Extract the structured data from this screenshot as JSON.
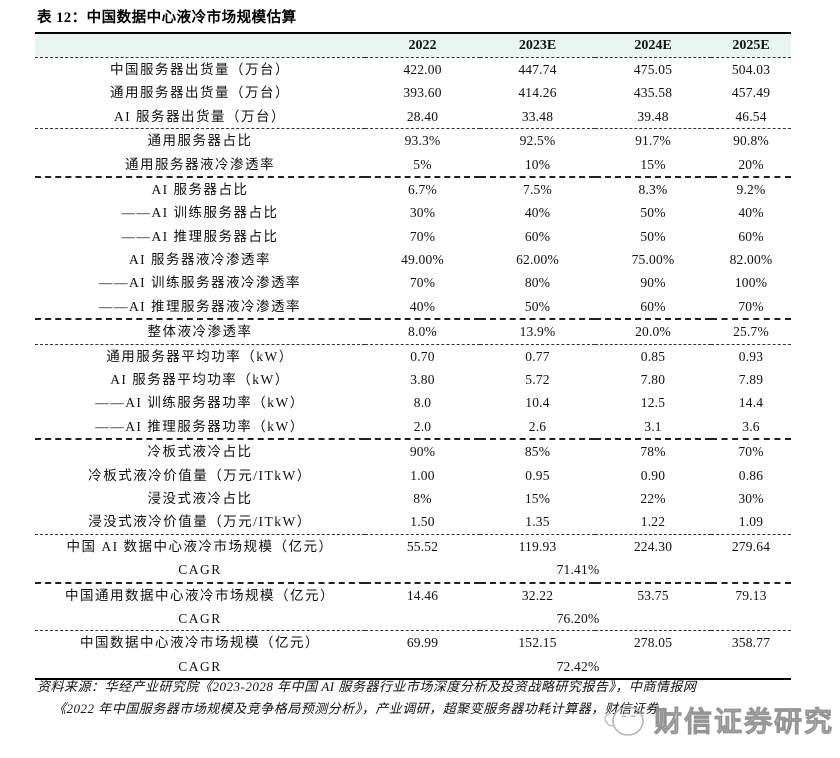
{
  "title": "表 12：中国数据中心液冷市场规模估算",
  "table": {
    "columns": [
      "2022",
      "2023E",
      "2024E",
      "2025E"
    ],
    "sections": [
      {
        "separator": "dashed",
        "rows": [
          {
            "label": "中国服务器出货量（万台）",
            "values": [
              "422.00",
              "447.74",
              "475.05",
              "504.03"
            ]
          },
          {
            "label": "通用服务器出货量（万台）",
            "values": [
              "393.60",
              "414.26",
              "435.58",
              "457.49"
            ]
          },
          {
            "label": "AI 服务器出货量（万台）",
            "values": [
              "28.40",
              "33.48",
              "39.48",
              "46.54"
            ]
          }
        ]
      },
      {
        "separator": "dashed",
        "rows": [
          {
            "label": "通用服务器占比",
            "values": [
              "93.3%",
              "92.5%",
              "91.7%",
              "90.8%"
            ]
          },
          {
            "label": "通用服务器液冷渗透率",
            "values": [
              "5%",
              "10%",
              "15%",
              "20%"
            ]
          }
        ]
      },
      {
        "separator": "heavy",
        "rows": [
          {
            "label": "AI 服务器占比",
            "values": [
              "6.7%",
              "7.5%",
              "8.3%",
              "9.2%"
            ]
          },
          {
            "label": "——AI 训练服务器占比",
            "values": [
              "30%",
              "40%",
              "50%",
              "40%"
            ]
          },
          {
            "label": "——AI 推理服务器占比",
            "values": [
              "70%",
              "60%",
              "50%",
              "60%"
            ]
          },
          {
            "label": "AI 服务器液冷渗透率",
            "values": [
              "49.00%",
              "62.00%",
              "75.00%",
              "82.00%"
            ]
          },
          {
            "label": "——AI 训练服务器液冷渗透率",
            "values": [
              "70%",
              "80%",
              "90%",
              "100%"
            ]
          },
          {
            "label": "——AI 推理服务器液冷渗透率",
            "values": [
              "40%",
              "50%",
              "60%",
              "70%"
            ]
          }
        ]
      },
      {
        "separator": "heavy",
        "rows": [
          {
            "label": "整体液冷渗透率",
            "values": [
              "8.0%",
              "13.9%",
              "20.0%",
              "25.7%"
            ]
          }
        ]
      },
      {
        "separator": "dashed",
        "rows": [
          {
            "label": "通用服务器平均功率（kW）",
            "values": [
              "0.70",
              "0.77",
              "0.85",
              "0.93"
            ]
          },
          {
            "label": "AI 服务器平均功率（kW）",
            "values": [
              "3.80",
              "5.72",
              "7.80",
              "7.89"
            ]
          },
          {
            "label": "——AI 训练服务器功率（kW）",
            "values": [
              "8.0",
              "10.4",
              "12.5",
              "14.4"
            ]
          },
          {
            "label": "——AI 推理服务器功率（kW）",
            "values": [
              "2.0",
              "2.6",
              "3.1",
              "3.6"
            ]
          }
        ]
      },
      {
        "separator": "heavy",
        "rows": [
          {
            "label": "冷板式液冷占比",
            "values": [
              "90%",
              "85%",
              "78%",
              "70%"
            ]
          },
          {
            "label": "冷板式液冷价值量（万元/ITkW）",
            "values": [
              "1.00",
              "0.95",
              "0.90",
              "0.86"
            ]
          },
          {
            "label": "浸没式液冷占比",
            "values": [
              "8%",
              "15%",
              "22%",
              "30%"
            ]
          },
          {
            "label": "浸没式液冷价值量（万元/ITkW）",
            "values": [
              "1.50",
              "1.35",
              "1.22",
              "1.09"
            ]
          }
        ]
      },
      {
        "separator": "dashed",
        "rows": [
          {
            "label": "中国 AI 数据中心液冷市场规模（亿元）",
            "values": [
              "55.52",
              "119.93",
              "224.30",
              "279.64"
            ]
          },
          {
            "label": "CAGR",
            "span": "71.41%"
          }
        ]
      },
      {
        "separator": "heavy",
        "rows": [
          {
            "label": "中国通用数据中心液冷市场规模（亿元）",
            "values": [
              "14.46",
              "32.22",
              "53.75",
              "79.13"
            ]
          },
          {
            "label": "CAGR",
            "span": "76.20%"
          }
        ]
      },
      {
        "separator": "dashed",
        "rows": [
          {
            "label": "中国数据中心液冷市场规模（亿元）",
            "values": [
              "69.99",
              "152.15",
              "278.05",
              "358.77"
            ]
          },
          {
            "label": "CAGR",
            "span": "72.42%"
          }
        ]
      }
    ]
  },
  "source": {
    "line1": "资料来源：华经产业研究院《2023-2028 年中国 AI 服务器行业市场深度分析及投资战略研究报告》，中商情报网",
    "line2": "《2022 年中国服务器市场规模及竞争格局预测分析》，产业调研，超聚变服务器功耗计算器，财信证券"
  },
  "watermark": {
    "text": "财信证券研究"
  },
  "colors": {
    "header_bg": "#e8f5f1",
    "border": "#000000",
    "text": "#111111",
    "watermark": "#949494"
  }
}
